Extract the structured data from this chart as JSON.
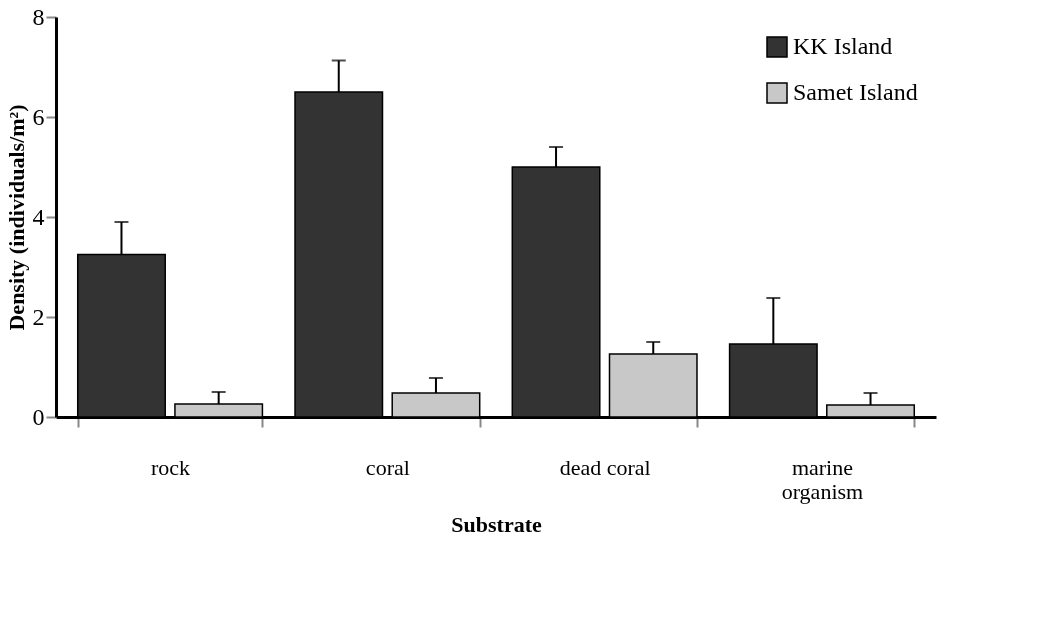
{
  "chart_data": {
    "type": "bar",
    "xlabel": "Substrate",
    "ylabel": "Density (individuals/m²)",
    "categories": [
      "rock",
      "coral",
      "dead coral",
      "marine organism"
    ],
    "series": [
      {
        "name": "KK Island",
        "color": "#333333",
        "values": [
          3.25,
          6.5,
          5.0,
          1.46
        ],
        "errors": [
          [
            3.25,
            3.9
          ],
          [
            6.5,
            7.13
          ],
          [
            5.0,
            5.4
          ],
          [
            1.46,
            2.38
          ]
        ]
      },
      {
        "name": "Samet Island",
        "color": "#c8c8c8",
        "values": [
          0.26,
          0.48,
          1.26,
          0.24
        ],
        "errors": [
          [
            0.26,
            0.5
          ],
          [
            0.48,
            0.78
          ],
          [
            1.26,
            1.5
          ],
          [
            0.24,
            0.48
          ]
        ]
      }
    ],
    "ylim": [
      0,
      8
    ],
    "yticks": [
      0,
      2,
      4,
      6,
      8
    ],
    "grid": false,
    "legend": "top right"
  }
}
